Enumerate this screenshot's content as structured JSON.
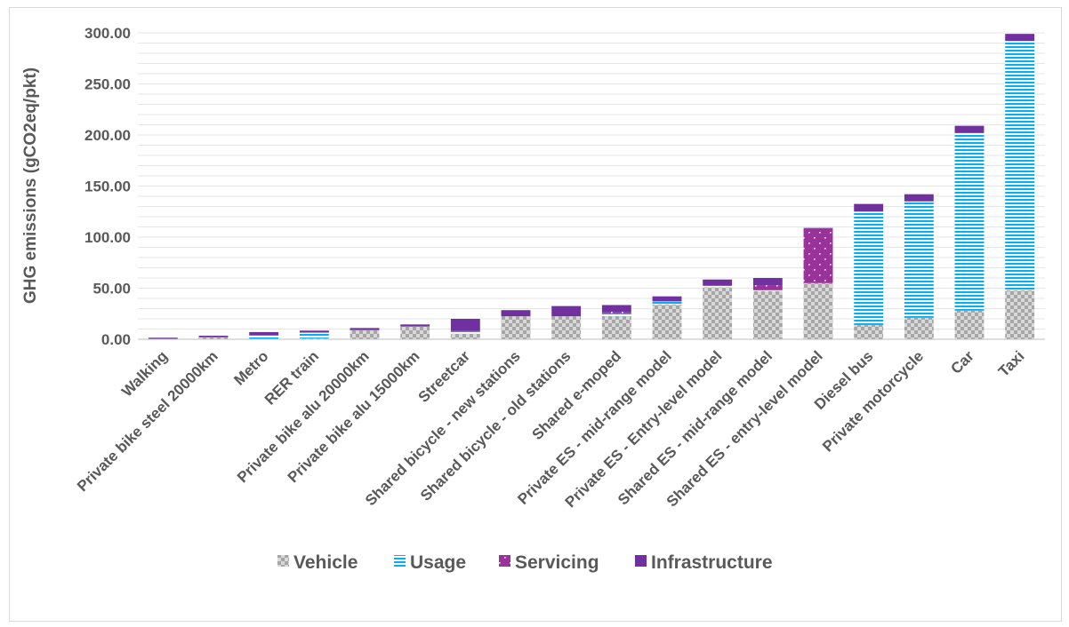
{
  "chart_data": {
    "type": "bar",
    "stacked": true,
    "title": "",
    "xlabel": "",
    "ylabel": "GHG emissions (gCO2eq/pkt)",
    "ylim": [
      0,
      300
    ],
    "yticks": [
      "0.00",
      "50.00",
      "100.00",
      "150.00",
      "200.00",
      "250.00",
      "300.00"
    ],
    "grid": "horizontal",
    "legend": "bottom",
    "categories": [
      "Walking",
      "Private bike steel 20000km",
      "Metro",
      "RER train",
      "Private bike alu 20000km",
      "Private bike alu 15000km",
      "Streetcar",
      "Shared bicycle - new stations",
      "Shared bicycle - old stations",
      "Shared e-moped",
      "Private ES - mid-range model",
      "Private ES - Entry-level model",
      "Shared ES - mid-range model",
      "Shared ES - entry-level model",
      "Diesel bus",
      "Private motorcycle",
      "Car",
      "Taxi"
    ],
    "series": [
      {
        "name": "Vehicle",
        "color": "#a6a6a6",
        "pattern": "checker",
        "values": [
          0,
          2,
          0.5,
          1,
          9,
          12.5,
          5.5,
          22.5,
          22.5,
          22.5,
          34,
          51,
          47,
          55,
          14,
          21,
          28,
          48
        ]
      },
      {
        "name": "Usage",
        "color": "#00b0f0",
        "pattern": "horizontal-lines",
        "values": [
          0,
          0,
          3.5,
          5.5,
          0,
          0,
          2.5,
          0,
          0,
          3,
          3,
          1.5,
          1,
          0,
          111,
          114,
          174,
          244
        ]
      },
      {
        "name": "Servicing",
        "color": "#993399",
        "pattern": "dots",
        "values": [
          0,
          0,
          0,
          0,
          0,
          0,
          0,
          0,
          0,
          1.5,
          0,
          0,
          5,
          53,
          0,
          0,
          0,
          0
        ]
      },
      {
        "name": "Infrastructure",
        "color": "#7030a0",
        "pattern": "solid",
        "values": [
          1.5,
          1.5,
          3,
          2,
          2,
          2,
          12,
          6,
          10,
          6.5,
          5,
          6,
          7,
          1,
          7.5,
          7,
          7,
          7
        ]
      }
    ]
  }
}
